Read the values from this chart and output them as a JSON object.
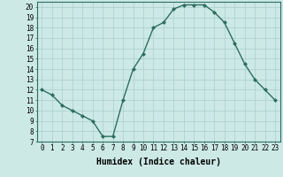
{
  "title": "",
  "xlabel": "Humidex (Indice chaleur)",
  "ylabel": "",
  "x": [
    0,
    1,
    2,
    3,
    4,
    5,
    6,
    7,
    8,
    9,
    10,
    11,
    12,
    13,
    14,
    15,
    16,
    17,
    18,
    19,
    20,
    21,
    22,
    23
  ],
  "y": [
    12,
    11.5,
    10.5,
    10,
    9.5,
    9,
    7.5,
    7.5,
    11,
    14,
    15.5,
    18,
    18.5,
    19.8,
    20.2,
    20.2,
    20.2,
    19.5,
    18.5,
    16.5,
    14.5,
    13,
    12,
    11
  ],
  "line_color": "#2d6e5e",
  "marker": "D",
  "marker_size": 2.0,
  "line_width": 1.0,
  "background_color": "#cce9e5",
  "grid_color": "#aacfcc",
  "xlim": [
    -0.5,
    23.5
  ],
  "ylim": [
    7,
    20.5
  ],
  "xticks": [
    0,
    1,
    2,
    3,
    4,
    5,
    6,
    7,
    8,
    9,
    10,
    11,
    12,
    13,
    14,
    15,
    16,
    17,
    18,
    19,
    20,
    21,
    22,
    23
  ],
  "yticks": [
    7,
    8,
    9,
    10,
    11,
    12,
    13,
    14,
    15,
    16,
    17,
    18,
    19,
    20
  ],
  "tick_fontsize": 5.5,
  "xlabel_fontsize": 7.0,
  "spine_color": "#2d6e5e"
}
